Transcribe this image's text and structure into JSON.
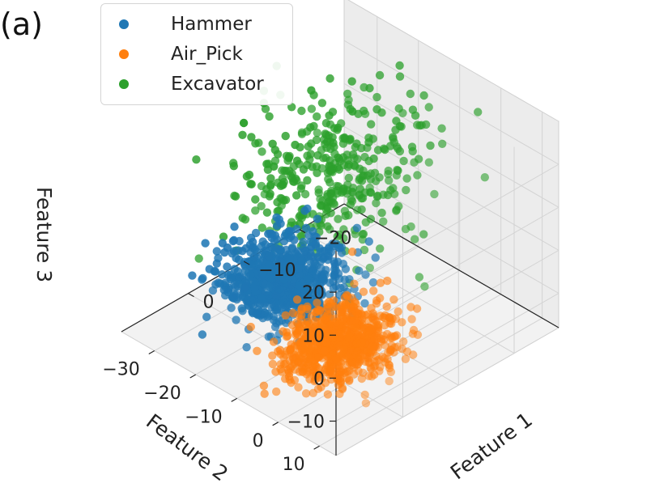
{
  "panel_label": "(a)",
  "chart_data": {
    "type": "scatter",
    "dimensions": 3,
    "xlabel": "Feature 1",
    "ylabel": "Feature 2",
    "zlabel": "Feature 3",
    "x_ticks": [
      "−20",
      "−10",
      "0"
    ],
    "y_ticks": [
      "−30",
      "−20",
      "−10",
      "0",
      "10"
    ],
    "z_ticks": [
      "20",
      "10",
      "0",
      "−10"
    ],
    "legend_position": "top-left",
    "grid": true,
    "series": [
      {
        "name": "Hammer",
        "color": "#1f77b4",
        "center": {
          "x": -5,
          "y": -22,
          "z": -10
        },
        "spread": {
          "x": 4,
          "y": 5,
          "z": 3
        },
        "approx_points": 800
      },
      {
        "name": "Air_Pick",
        "color": "#ff7f0e",
        "center": {
          "x": -1,
          "y": -3,
          "z": -11
        },
        "spread": {
          "x": 4,
          "y": 4,
          "z": 3
        },
        "approx_points": 800
      },
      {
        "name": "Excavator",
        "color": "#2ca02c",
        "center": {
          "x": -12,
          "y": -18,
          "z": 12
        },
        "spread": {
          "x": 7,
          "y": 7,
          "z": 8
        },
        "approx_points": 400
      }
    ]
  }
}
